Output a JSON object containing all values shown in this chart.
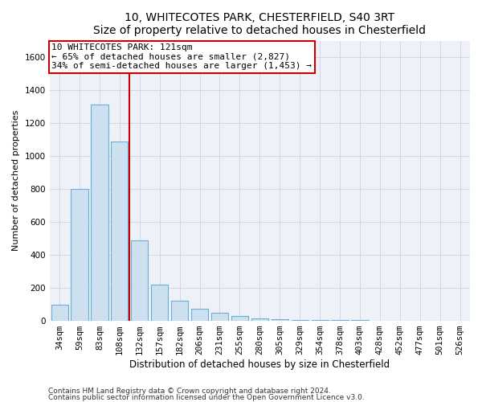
{
  "title": "10, WHITECOTES PARK, CHESTERFIELD, S40 3RT",
  "subtitle": "Size of property relative to detached houses in Chesterfield",
  "xlabel": "Distribution of detached houses by size in Chesterfield",
  "ylabel": "Number of detached properties",
  "footnote1": "Contains HM Land Registry data © Crown copyright and database right 2024.",
  "footnote2": "Contains public sector information licensed under the Open Government Licence v3.0.",
  "annotation_line1": "10 WHITECOTES PARK: 121sqm",
  "annotation_line2": "← 65% of detached houses are smaller (2,827)",
  "annotation_line3": "34% of semi-detached houses are larger (1,453) →",
  "bar_color": "#cde0f0",
  "bar_edge_color": "#6aaed6",
  "vline_color": "#cc0000",
  "annotation_box_edge_color": "#cc0000",
  "annotation_box_face_color": "#ffffff",
  "categories": [
    "34sqm",
    "59sqm",
    "83sqm",
    "108sqm",
    "132sqm",
    "157sqm",
    "182sqm",
    "206sqm",
    "231sqm",
    "255sqm",
    "280sqm",
    "305sqm",
    "329sqm",
    "354sqm",
    "378sqm",
    "403sqm",
    "428sqm",
    "452sqm",
    "477sqm",
    "501sqm",
    "526sqm"
  ],
  "values": [
    100,
    800,
    1310,
    1090,
    490,
    220,
    120,
    75,
    50,
    30,
    15,
    8,
    5,
    4,
    3,
    3,
    2,
    1,
    1,
    1,
    0
  ],
  "ylim": [
    0,
    1700
  ],
  "yticks": [
    0,
    200,
    400,
    600,
    800,
    1000,
    1200,
    1400,
    1600
  ],
  "vline_position": 3.5,
  "title_fontsize": 10,
  "xlabel_fontsize": 8.5,
  "ylabel_fontsize": 8,
  "tick_fontsize": 7.5,
  "annotation_fontsize": 8,
  "footnote_fontsize": 6.5,
  "grid_color": "#d0d8e8",
  "background_color": "#eef2f8"
}
